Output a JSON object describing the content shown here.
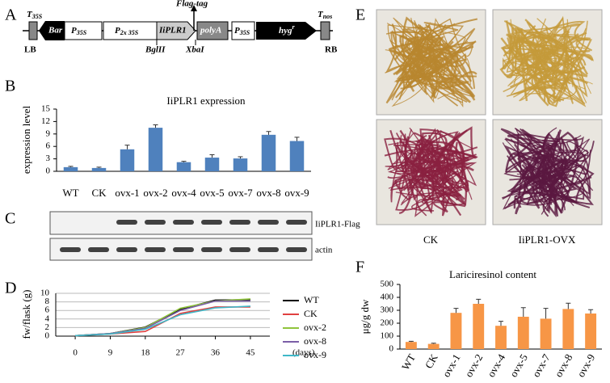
{
  "panels": [
    "A",
    "B",
    "C",
    "D",
    "E",
    "F"
  ],
  "construct": {
    "t35s": {
      "main": "T",
      "sub": "35S"
    },
    "bar": "Bar",
    "p35s_1": {
      "main": "P",
      "sub": "35S"
    },
    "p2x35s": {
      "main": "P",
      "sub": "2x 35S"
    },
    "gene": "IiPLR1",
    "flag": "Flag-tag",
    "polya": "polyA",
    "p35s_2": {
      "main": "P",
      "sub": "35S"
    },
    "hyg": {
      "main": "hyg",
      "sup": "r"
    },
    "tnos": {
      "main": "T",
      "sub": "nos"
    },
    "lb": "LB",
    "rb": "RB",
    "bgl": "BglII",
    "xba": "XbaI"
  },
  "blot": {
    "labels": [
      "IiPLR1-Flag",
      "actin"
    ]
  },
  "photos": {
    "labels": [
      "CK",
      "IiPLR1-OVX"
    ]
  },
  "chart_data": [
    {
      "type": "bar",
      "title": "IiPLR1 expression",
      "y_label": "expression level",
      "categories": [
        "WT",
        "CK",
        "ovx-1",
        "ovx-2",
        "ovx-4",
        "ovx-5",
        "ovx-7",
        "ovx-8",
        "ovx-9"
      ],
      "values": [
        1.0,
        0.8,
        5.3,
        10.5,
        2.2,
        3.3,
        3.1,
        8.8,
        7.3
      ],
      "errors": [
        0.2,
        0.2,
        1.0,
        0.7,
        0.2,
        0.7,
        0.4,
        0.8,
        0.9
      ],
      "color": "#4f81bd",
      "ylim": [
        0,
        15
      ],
      "yticks": [
        0,
        3,
        6,
        9,
        12,
        15
      ],
      "grid": false
    },
    {
      "type": "line",
      "y_label": "fw/flask (g)",
      "x_label": "(days)",
      "x": [
        0,
        9,
        18,
        27,
        36,
        45
      ],
      "xlim": [
        -5,
        50
      ],
      "xticks": [
        0,
        9,
        18,
        27,
        36,
        45
      ],
      "ylim": [
        0,
        10
      ],
      "yticks": [
        0,
        2,
        4,
        6,
        8,
        10
      ],
      "grid": true,
      "series": [
        {
          "name": "WT",
          "color": "#000000",
          "values": [
            0.1,
            0.6,
            2.1,
            6.3,
            8.4,
            8.5
          ]
        },
        {
          "name": "CK",
          "color": "#e04040",
          "values": [
            0.1,
            0.5,
            1.1,
            5.3,
            6.8,
            6.8
          ]
        },
        {
          "name": "ovx-2",
          "color": "#8fc43c",
          "values": [
            0.1,
            0.6,
            2.0,
            6.5,
            8.2,
            8.7
          ]
        },
        {
          "name": "ovx-8",
          "color": "#7b5ea7",
          "values": [
            0.1,
            0.6,
            1.8,
            6.0,
            8.2,
            8.2
          ]
        },
        {
          "name": "ovx-9",
          "color": "#3fb8c8",
          "values": [
            0.1,
            0.5,
            1.6,
            5.0,
            6.6,
            7.0
          ]
        }
      ]
    },
    {
      "type": "bar",
      "title": "Lariciresinol content",
      "y_label": "μg/g dw",
      "categories": [
        "WT",
        "CK",
        "ovx-1",
        "ovx-2",
        "ovx-4",
        "ovx-5",
        "ovx-7",
        "ovx-8",
        "ovx-9"
      ],
      "values": [
        55,
        40,
        280,
        350,
        180,
        250,
        235,
        310,
        275
      ],
      "errors": [
        5,
        5,
        35,
        35,
        35,
        70,
        80,
        45,
        30
      ],
      "color": "#f79646",
      "ylim": [
        0,
        500
      ],
      "yticks": [
        0,
        100,
        200,
        300,
        400,
        500
      ],
      "grid": false
    }
  ]
}
